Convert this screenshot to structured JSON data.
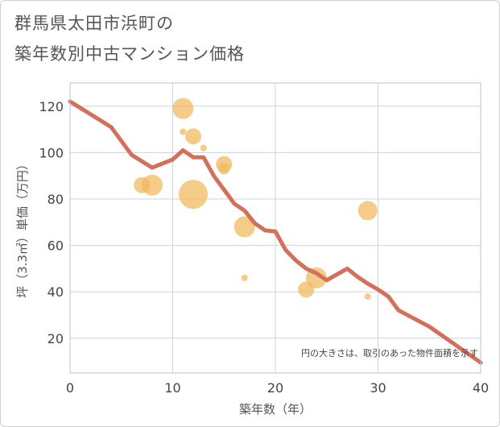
{
  "header": {
    "title_line1": "群馬県太田市浜町の",
    "title_line2": "築年数別中古マンション価格"
  },
  "chart_data": {
    "type": "scatter",
    "title": "群馬県太田市浜町の築年数別中古マンション価格",
    "xlabel": "築年数（年）",
    "ylabel": "坪（3.3㎡）単価（万円）",
    "xlim": [
      0,
      40
    ],
    "ylim": [
      5,
      130
    ],
    "x_ticks": [
      0,
      10,
      20,
      30,
      40
    ],
    "y_ticks": [
      20,
      40,
      60,
      80,
      100,
      120
    ],
    "grid": true,
    "note": "円の大きさは、取引のあった物件面積を示す",
    "bubble_color": "#f0b85a",
    "line_color": "#d4705a",
    "bubbles": [
      {
        "x": 7,
        "y": 86,
        "size": 10
      },
      {
        "x": 8,
        "y": 86,
        "size": 13
      },
      {
        "x": 11,
        "y": 119,
        "size": 13
      },
      {
        "x": 11,
        "y": 109,
        "size": 4
      },
      {
        "x": 12,
        "y": 107,
        "size": 10
      },
      {
        "x": 12,
        "y": 82,
        "size": 18
      },
      {
        "x": 13,
        "y": 102,
        "size": 4
      },
      {
        "x": 15,
        "y": 95,
        "size": 10
      },
      {
        "x": 15,
        "y": 93,
        "size": 7
      },
      {
        "x": 17,
        "y": 68,
        "size": 13
      },
      {
        "x": 17,
        "y": 46,
        "size": 4
      },
      {
        "x": 23,
        "y": 41,
        "size": 10
      },
      {
        "x": 24,
        "y": 46,
        "size": 13
      },
      {
        "x": 29,
        "y": 75,
        "size": 12
      },
      {
        "x": 29,
        "y": 38,
        "size": 4
      }
    ],
    "trend": {
      "x": [
        0,
        4,
        6,
        8,
        10,
        11,
        12,
        13,
        14,
        15,
        16,
        17,
        18,
        19,
        20,
        21,
        22,
        23,
        24,
        25,
        26,
        27,
        28,
        29,
        30,
        31,
        32,
        35,
        40
      ],
      "y": [
        122,
        111,
        99,
        93.5,
        97,
        101,
        98,
        98,
        90,
        84,
        78,
        75,
        69.5,
        66.5,
        66,
        58,
        53.5,
        50,
        48,
        45,
        47.5,
        50,
        46.5,
        43.5,
        41,
        38,
        32,
        25,
        9.5
      ]
    }
  }
}
